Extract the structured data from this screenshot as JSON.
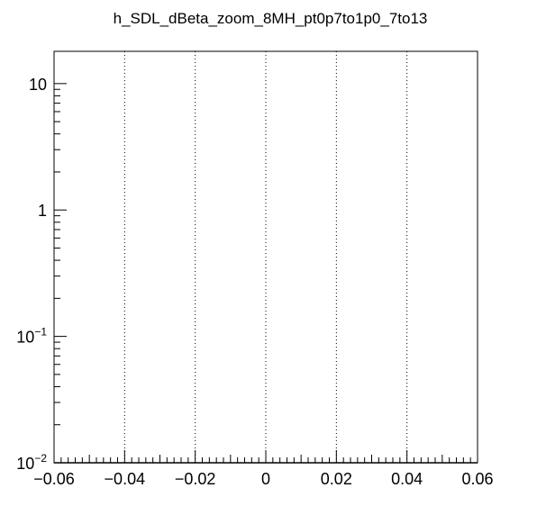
{
  "chart_data": {
    "type": "bar",
    "title": "h_SDL_dBeta_zoom_8MH_pt0p7to1p0_7to13",
    "xlabel": "",
    "ylabel": "",
    "xlim": [
      -0.06,
      0.06
    ],
    "ylim": [
      0.01,
      18
    ],
    "y_scale": "log",
    "x_ticks": [
      -0.06,
      -0.04,
      -0.02,
      0,
      0.02,
      0.04,
      0.06
    ],
    "x_tick_labels": [
      "−0.06",
      "−0.04",
      "−0.02",
      "0",
      "0.02",
      "0.04",
      "0.06"
    ],
    "y_ticks": [
      {
        "value": 10,
        "base": "10",
        "exp": ""
      },
      {
        "value": 1,
        "base": "1",
        "exp": ""
      },
      {
        "value": 0.1,
        "base": "10",
        "exp": "−1"
      },
      {
        "value": 0.01,
        "base": "10",
        "exp": "−2"
      }
    ],
    "vertical_grid": [
      -0.04,
      -0.02,
      0,
      0.02,
      0.04
    ],
    "grid": "vertical dotted lines",
    "series": [
      {
        "values": [],
        "color": "#000000"
      }
    ]
  }
}
